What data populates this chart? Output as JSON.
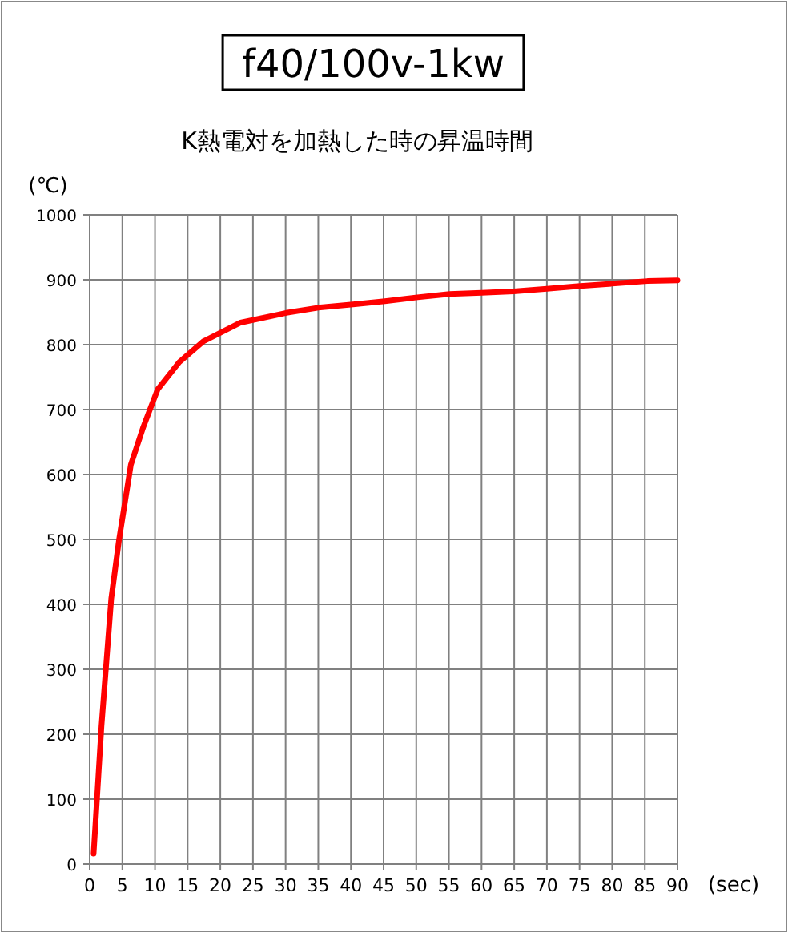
{
  "chart_data": {
    "type": "line",
    "title": "f40/100v-1kw",
    "subtitle": "K熱電対を加熱した時の昇温時間",
    "xlabel": "(sec)",
    "ylabel": "(℃)",
    "xlim": [
      0,
      90
    ],
    "ylim": [
      0,
      1000
    ],
    "xticks": [
      0,
      5,
      10,
      15,
      20,
      25,
      30,
      35,
      40,
      45,
      50,
      55,
      60,
      65,
      70,
      75,
      80,
      85,
      90
    ],
    "yticks": [
      0,
      100,
      200,
      300,
      400,
      500,
      600,
      700,
      800,
      900,
      1000
    ],
    "grid": true,
    "marker": "none",
    "line_style": "solid",
    "series": [
      {
        "color": "#ff0000",
        "x": [
          0.6,
          1.8,
          3.3,
          4.5,
          6.3,
          8.2,
          10.4,
          13.7,
          17.4,
          23.1,
          30.1,
          35,
          40.3,
          45.2,
          50.2,
          55.1,
          60,
          64.9,
          70,
          74.7,
          80,
          85.4,
          90
        ],
        "values": [
          16,
          212,
          409,
          500,
          615,
          673,
          731,
          773,
          805,
          834,
          849,
          857,
          862,
          867,
          873,
          878,
          880,
          882,
          886,
          890,
          894,
          898,
          899
        ]
      }
    ]
  }
}
